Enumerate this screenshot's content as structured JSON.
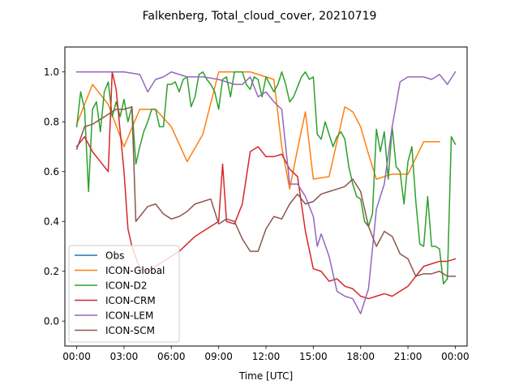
{
  "chart_data": {
    "type": "line",
    "title": "Falkenberg, Total_cloud_cover, 20210719",
    "xlabel": "Time [UTC]",
    "ylabel": "",
    "xlim": [
      -0.75,
      24.75
    ],
    "ylim": [
      -0.1,
      1.1
    ],
    "x_ticks": [
      0,
      3,
      6,
      9,
      12,
      15,
      18,
      21,
      24
    ],
    "x_tick_labels": [
      "00:00",
      "03:00",
      "06:00",
      "09:00",
      "12:00",
      "15:00",
      "18:00",
      "21:00",
      "00:00"
    ],
    "y_ticks": [
      0.0,
      0.2,
      0.4,
      0.6,
      0.8,
      1.0
    ],
    "y_tick_labels": [
      "0.0",
      "0.2",
      "0.4",
      "0.6",
      "0.8",
      "1.0"
    ],
    "grid": false,
    "legend_position": "lower-left",
    "series": [
      {
        "name": "Obs",
        "color": "#1f77b4",
        "points": []
      },
      {
        "name": "ICON-Global",
        "color": "#ff7f0e",
        "points": [
          [
            0,
            0.79
          ],
          [
            1,
            0.95
          ],
          [
            2,
            0.87
          ],
          [
            3,
            0.7
          ],
          [
            4,
            0.85
          ],
          [
            5,
            0.85
          ],
          [
            6,
            0.78
          ],
          [
            7,
            0.64
          ],
          [
            8,
            0.75
          ],
          [
            9,
            1.0
          ],
          [
            10,
            1.0
          ],
          [
            11,
            1.0
          ],
          [
            12,
            0.98
          ],
          [
            12.5,
            0.97
          ],
          [
            13,
            0.7
          ],
          [
            13.5,
            0.53
          ],
          [
            14,
            0.69
          ],
          [
            14.5,
            0.84
          ],
          [
            15,
            0.57
          ],
          [
            16,
            0.58
          ],
          [
            17,
            0.86
          ],
          [
            17.5,
            0.84
          ],
          [
            18,
            0.78
          ],
          [
            18.5,
            0.67
          ],
          [
            19,
            0.57
          ],
          [
            20,
            0.59
          ],
          [
            21,
            0.59
          ],
          [
            22,
            0.72
          ],
          [
            23,
            0.72
          ]
        ]
      },
      {
        "name": "ICON-D2",
        "color": "#2ca02c",
        "points": [
          [
            0,
            0.78
          ],
          [
            0.25,
            0.92
          ],
          [
            0.5,
            0.85
          ],
          [
            0.75,
            0.52
          ],
          [
            1,
            0.85
          ],
          [
            1.25,
            0.88
          ],
          [
            1.5,
            0.76
          ],
          [
            1.75,
            0.92
          ],
          [
            2,
            0.96
          ],
          [
            2.25,
            0.82
          ],
          [
            2.5,
            0.88
          ],
          [
            2.75,
            0.82
          ],
          [
            3,
            0.89
          ],
          [
            3.25,
            0.8
          ],
          [
            3.5,
            0.86
          ],
          [
            3.75,
            0.63
          ],
          [
            4,
            0.7
          ],
          [
            4.25,
            0.76
          ],
          [
            4.5,
            0.8
          ],
          [
            4.75,
            0.85
          ],
          [
            5,
            0.85
          ],
          [
            5.25,
            0.78
          ],
          [
            5.5,
            0.78
          ],
          [
            5.75,
            0.95
          ],
          [
            6,
            0.95
          ],
          [
            6.25,
            0.96
          ],
          [
            6.5,
            0.92
          ],
          [
            6.75,
            0.97
          ],
          [
            7,
            0.98
          ],
          [
            7.25,
            0.86
          ],
          [
            7.5,
            0.9
          ],
          [
            7.75,
            0.99
          ],
          [
            8,
            1.0
          ],
          [
            8.25,
            0.97
          ],
          [
            8.5,
            0.95
          ],
          [
            8.75,
            0.92
          ],
          [
            9,
            0.85
          ],
          [
            9.25,
            0.97
          ],
          [
            9.5,
            0.98
          ],
          [
            9.75,
            0.9
          ],
          [
            10,
            1.0
          ],
          [
            10.5,
            1.0
          ],
          [
            10.75,
            0.95
          ],
          [
            11,
            0.93
          ],
          [
            11.25,
            0.98
          ],
          [
            11.5,
            0.97
          ],
          [
            11.75,
            0.9
          ],
          [
            12,
            0.98
          ],
          [
            12.25,
            0.95
          ],
          [
            12.5,
            0.92
          ],
          [
            12.75,
            0.95
          ],
          [
            13,
            1.0
          ],
          [
            13.25,
            0.95
          ],
          [
            13.5,
            0.88
          ],
          [
            13.75,
            0.9
          ],
          [
            14,
            0.94
          ],
          [
            14.25,
            0.98
          ],
          [
            14.5,
            1.0
          ],
          [
            14.75,
            0.97
          ],
          [
            15,
            0.98
          ],
          [
            15.25,
            0.75
          ],
          [
            15.5,
            0.73
          ],
          [
            15.75,
            0.8
          ],
          [
            16,
            0.75
          ],
          [
            16.25,
            0.7
          ],
          [
            16.5,
            0.74
          ],
          [
            16.75,
            0.76
          ],
          [
            17,
            0.73
          ],
          [
            17.25,
            0.62
          ],
          [
            17.5,
            0.55
          ],
          [
            17.75,
            0.5
          ],
          [
            18,
            0.49
          ],
          [
            18.25,
            0.4
          ],
          [
            18.5,
            0.38
          ],
          [
            18.75,
            0.43
          ],
          [
            19,
            0.77
          ],
          [
            19.25,
            0.68
          ],
          [
            19.5,
            0.76
          ],
          [
            19.75,
            0.57
          ],
          [
            20,
            0.78
          ],
          [
            20.25,
            0.62
          ],
          [
            20.5,
            0.6
          ],
          [
            20.75,
            0.47
          ],
          [
            21,
            0.64
          ],
          [
            21.25,
            0.7
          ],
          [
            21.5,
            0.48
          ],
          [
            21.75,
            0.31
          ],
          [
            22,
            0.3
          ],
          [
            22.25,
            0.5
          ],
          [
            22.5,
            0.3
          ],
          [
            22.75,
            0.3
          ],
          [
            23,
            0.29
          ],
          [
            23.25,
            0.15
          ],
          [
            23.5,
            0.17
          ],
          [
            23.75,
            0.74
          ],
          [
            24,
            0.71
          ]
        ]
      },
      {
        "name": "ICON-CRM",
        "color": "#d62728",
        "points": [
          [
            0,
            0.7
          ],
          [
            0.5,
            0.74
          ],
          [
            1,
            0.68
          ],
          [
            1.5,
            0.64
          ],
          [
            2,
            0.6
          ],
          [
            2.25,
            1.0
          ],
          [
            2.5,
            0.93
          ],
          [
            3,
            0.6
          ],
          [
            3.25,
            0.37
          ],
          [
            3.5,
            0.3
          ],
          [
            4,
            0.21
          ],
          [
            4.5,
            0.2
          ],
          [
            5,
            0.22
          ],
          [
            5.5,
            0.24
          ],
          [
            6,
            0.26
          ],
          [
            6.5,
            0.28
          ],
          [
            7,
            0.31
          ],
          [
            7.5,
            0.34
          ],
          [
            8,
            0.36
          ],
          [
            8.5,
            0.38
          ],
          [
            9,
            0.4
          ],
          [
            9.25,
            0.63
          ],
          [
            9.5,
            0.4
          ],
          [
            10,
            0.39
          ],
          [
            10.5,
            0.47
          ],
          [
            11,
            0.68
          ],
          [
            11.5,
            0.7
          ],
          [
            12,
            0.66
          ],
          [
            12.5,
            0.66
          ],
          [
            13,
            0.67
          ],
          [
            13.5,
            0.61
          ],
          [
            14,
            0.58
          ],
          [
            14.5,
            0.36
          ],
          [
            15,
            0.21
          ],
          [
            15.5,
            0.2
          ],
          [
            16,
            0.16
          ],
          [
            16.5,
            0.17
          ],
          [
            17,
            0.14
          ],
          [
            17.5,
            0.13
          ],
          [
            18,
            0.1
          ],
          [
            18.5,
            0.09
          ],
          [
            19,
            0.1
          ],
          [
            19.5,
            0.11
          ],
          [
            20,
            0.1
          ],
          [
            20.5,
            0.12
          ],
          [
            21,
            0.14
          ],
          [
            21.5,
            0.18
          ],
          [
            22,
            0.22
          ],
          [
            22.5,
            0.23
          ],
          [
            23,
            0.24
          ],
          [
            23.5,
            0.24
          ],
          [
            24,
            0.25
          ]
        ]
      },
      {
        "name": "ICON-LEM",
        "color": "#9467bd",
        "points": [
          [
            0,
            1.0
          ],
          [
            1,
            1.0
          ],
          [
            2,
            1.0
          ],
          [
            3,
            1.0
          ],
          [
            4,
            0.99
          ],
          [
            4.5,
            0.92
          ],
          [
            5,
            0.97
          ],
          [
            5.5,
            0.98
          ],
          [
            6,
            1.0
          ],
          [
            7,
            0.98
          ],
          [
            8,
            0.98
          ],
          [
            9,
            0.97
          ],
          [
            10,
            0.95
          ],
          [
            10.5,
            0.95
          ],
          [
            11,
            0.98
          ],
          [
            11.5,
            0.9
          ],
          [
            12,
            0.92
          ],
          [
            12.5,
            0.88
          ],
          [
            13,
            0.85
          ],
          [
            13.5,
            0.55
          ],
          [
            14,
            0.55
          ],
          [
            14.5,
            0.5
          ],
          [
            15,
            0.42
          ],
          [
            15.25,
            0.3
          ],
          [
            15.5,
            0.35
          ],
          [
            16,
            0.26
          ],
          [
            16.5,
            0.12
          ],
          [
            17,
            0.1
          ],
          [
            17.5,
            0.09
          ],
          [
            18,
            0.03
          ],
          [
            18.5,
            0.13
          ],
          [
            19,
            0.45
          ],
          [
            19.5,
            0.55
          ],
          [
            20,
            0.78
          ],
          [
            20.5,
            0.96
          ],
          [
            21,
            0.98
          ],
          [
            21.5,
            0.98
          ],
          [
            22,
            0.98
          ],
          [
            22.5,
            0.97
          ],
          [
            23,
            0.99
          ],
          [
            23.5,
            0.95
          ],
          [
            24,
            1.0
          ]
        ]
      },
      {
        "name": "ICON-SCM",
        "color": "#8c564b",
        "points": [
          [
            0,
            0.69
          ],
          [
            0.5,
            0.78
          ],
          [
            1,
            0.79
          ],
          [
            1.5,
            0.81
          ],
          [
            2,
            0.83
          ],
          [
            2.5,
            0.85
          ],
          [
            3,
            0.85
          ],
          [
            3.5,
            0.86
          ],
          [
            3.75,
            0.4
          ],
          [
            4,
            0.42
          ],
          [
            4.5,
            0.46
          ],
          [
            5,
            0.47
          ],
          [
            5.5,
            0.43
          ],
          [
            6,
            0.41
          ],
          [
            6.5,
            0.42
          ],
          [
            7,
            0.44
          ],
          [
            7.5,
            0.47
          ],
          [
            8,
            0.48
          ],
          [
            8.5,
            0.49
          ],
          [
            9,
            0.39
          ],
          [
            9.5,
            0.41
          ],
          [
            10,
            0.4
          ],
          [
            10.5,
            0.33
          ],
          [
            11,
            0.28
          ],
          [
            11.5,
            0.28
          ],
          [
            12,
            0.37
          ],
          [
            12.5,
            0.42
          ],
          [
            13,
            0.41
          ],
          [
            13.5,
            0.47
          ],
          [
            14,
            0.51
          ],
          [
            14.5,
            0.47
          ],
          [
            15,
            0.48
          ],
          [
            15.5,
            0.51
          ],
          [
            16,
            0.52
          ],
          [
            16.5,
            0.53
          ],
          [
            17,
            0.54
          ],
          [
            17.5,
            0.57
          ],
          [
            18,
            0.52
          ],
          [
            18.5,
            0.38
          ],
          [
            19,
            0.3
          ],
          [
            19.5,
            0.36
          ],
          [
            20,
            0.34
          ],
          [
            20.5,
            0.27
          ],
          [
            21,
            0.25
          ],
          [
            21.5,
            0.18
          ],
          [
            22,
            0.19
          ],
          [
            22.5,
            0.19
          ],
          [
            23,
            0.2
          ],
          [
            23.5,
            0.18
          ],
          [
            24,
            0.18
          ]
        ]
      }
    ]
  }
}
